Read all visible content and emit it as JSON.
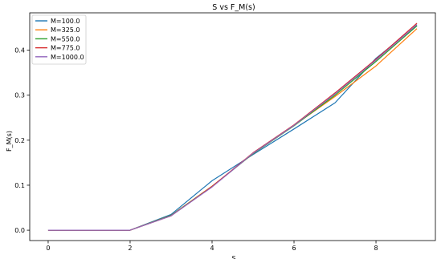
{
  "chart_data": {
    "type": "line",
    "title": "S vs F_M(s)",
    "xlabel": "S",
    "ylabel": "F_M(s)",
    "xlim": [
      -0.45,
      9.45
    ],
    "ylim": [
      -0.023,
      0.483
    ],
    "x_ticks": [
      0,
      2,
      4,
      6,
      8
    ],
    "y_ticks": [
      0.0,
      0.1,
      0.2,
      0.3,
      0.4
    ],
    "y_tick_labels": [
      "0.0",
      "0.1",
      "0.2",
      "0.3",
      "0.4"
    ],
    "grid": false,
    "legend_position": "upper-left",
    "x": [
      0,
      1,
      2,
      3,
      4,
      5,
      6,
      7,
      8,
      9
    ],
    "series": [
      {
        "name": "M=100.0",
        "color": "#1f77b4",
        "values": [
          0,
          0,
          0,
          0.035,
          0.11,
          0.168,
          0.225,
          0.283,
          0.382,
          0.455
        ]
      },
      {
        "name": "M=325.0",
        "color": "#ff7f0e",
        "values": [
          0,
          0,
          0,
          0.033,
          0.098,
          0.17,
          0.233,
          0.297,
          0.365,
          0.448
        ]
      },
      {
        "name": "M=550.0",
        "color": "#2ca02c",
        "values": [
          0,
          0,
          0,
          0.033,
          0.097,
          0.17,
          0.232,
          0.3,
          0.375,
          0.454
        ]
      },
      {
        "name": "M=775.0",
        "color": "#d62728",
        "values": [
          0,
          0,
          0,
          0.032,
          0.097,
          0.172,
          0.234,
          0.305,
          0.38,
          0.46
        ]
      },
      {
        "name": "M=1000.0",
        "color": "#9467bd",
        "values": [
          0,
          0,
          0,
          0.032,
          0.096,
          0.171,
          0.233,
          0.303,
          0.378,
          0.457
        ]
      }
    ]
  }
}
